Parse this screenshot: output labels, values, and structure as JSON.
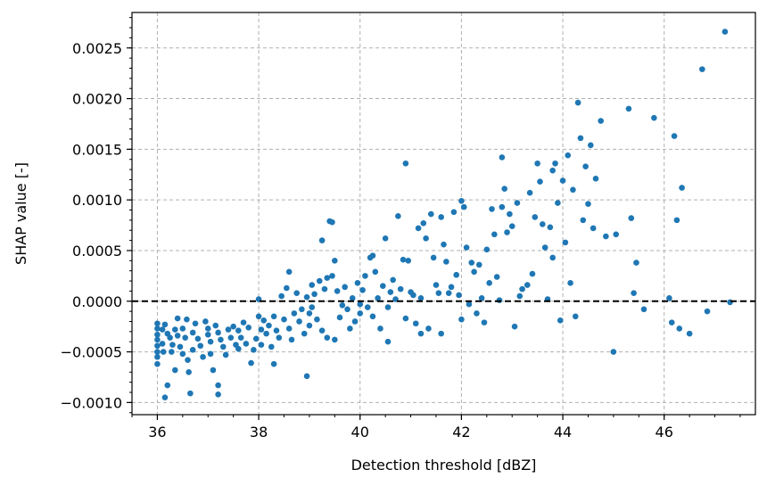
{
  "chart_data": {
    "type": "scatter",
    "title": "",
    "xlabel": "Detection threshold [dBZ]",
    "ylabel": "SHAP value [-]",
    "xlim": [
      35.5,
      47.8
    ],
    "ylim": [
      -0.00112,
      0.00285
    ],
    "xticks": [
      36,
      38,
      40,
      42,
      44,
      46
    ],
    "xtick_labels": [
      "36",
      "38",
      "40",
      "42",
      "44",
      "46"
    ],
    "yticks": [
      -0.001,
      -0.0005,
      0.0,
      0.0005,
      0.001,
      0.0015,
      0.002,
      0.0025
    ],
    "ytick_labels": [
      "−0.0010",
      "−0.0005",
      "0.0000",
      "0.0005",
      "0.0010",
      "0.0015",
      "0.0020",
      "0.0025"
    ],
    "grid": true,
    "reference_line": {
      "y": 0.0,
      "style": "dashed",
      "color": "#000000"
    },
    "colors": {
      "point": "#1f77b4",
      "grid": "#b0b0b0"
    },
    "series": [
      {
        "points": [
          [
            36.0,
            -0.00022
          ],
          [
            36.0,
            -0.00027
          ],
          [
            36.0,
            -0.00033
          ],
          [
            36.0,
            -0.00038
          ],
          [
            36.0,
            -0.00044
          ],
          [
            36.0,
            -0.0005
          ],
          [
            36.0,
            -0.00055
          ],
          [
            36.0,
            -0.00062
          ],
          [
            36.1,
            -0.00028
          ],
          [
            36.1,
            -0.00042
          ],
          [
            36.12,
            -0.0005
          ],
          [
            36.15,
            -0.00095
          ],
          [
            36.2,
            -0.00083
          ],
          [
            36.15,
            -0.00023
          ],
          [
            36.2,
            -0.00032
          ],
          [
            36.25,
            -0.00036
          ],
          [
            36.28,
            -0.0005
          ],
          [
            36.3,
            -0.00043
          ],
          [
            36.35,
            -0.00028
          ],
          [
            36.35,
            -0.00068
          ],
          [
            36.4,
            -0.00017
          ],
          [
            36.4,
            -0.00034
          ],
          [
            36.45,
            -0.00045
          ],
          [
            36.5,
            -0.00052
          ],
          [
            36.5,
            -0.00027
          ],
          [
            36.55,
            -0.00036
          ],
          [
            36.58,
            -0.00018
          ],
          [
            36.6,
            -0.00058
          ],
          [
            36.62,
            -0.0007
          ],
          [
            36.65,
            -0.00091
          ],
          [
            36.7,
            -0.00031
          ],
          [
            36.7,
            -0.00048
          ],
          [
            36.75,
            -0.00022
          ],
          [
            36.8,
            -0.00037
          ],
          [
            36.85,
            -0.00044
          ],
          [
            36.9,
            -0.00055
          ],
          [
            36.95,
            -0.0002
          ],
          [
            37.0,
            -0.00027
          ],
          [
            37.0,
            -0.00033
          ],
          [
            37.05,
            -0.0004
          ],
          [
            37.05,
            -0.00052
          ],
          [
            37.1,
            -0.00068
          ],
          [
            37.15,
            -0.00024
          ],
          [
            37.2,
            -0.00083
          ],
          [
            37.2,
            -0.00092
          ],
          [
            37.2,
            -0.00031
          ],
          [
            37.25,
            -0.00038
          ],
          [
            37.3,
            -0.00045
          ],
          [
            37.35,
            -0.00053
          ],
          [
            37.4,
            -0.00028
          ],
          [
            37.45,
            -0.00036
          ],
          [
            37.5,
            -0.00025
          ],
          [
            37.55,
            -0.00043
          ],
          [
            37.6,
            -0.00029
          ],
          [
            37.6,
            -0.00047
          ],
          [
            37.65,
            -0.00036
          ],
          [
            37.7,
            -0.00021
          ],
          [
            37.75,
            -0.00042
          ],
          [
            37.8,
            -0.00026
          ],
          [
            37.85,
            -0.00061
          ],
          [
            37.9,
            -0.00048
          ],
          [
            37.95,
            -0.00037
          ],
          [
            38.0,
            2e-05
          ],
          [
            38.0,
            -0.00015
          ],
          [
            38.05,
            -0.00028
          ],
          [
            38.05,
            -0.00043
          ],
          [
            38.1,
            -0.00019
          ],
          [
            38.15,
            -0.00032
          ],
          [
            38.2,
            -0.00024
          ],
          [
            38.25,
            -0.00045
          ],
          [
            38.3,
            -0.00062
          ],
          [
            38.3,
            -0.00015
          ],
          [
            38.35,
            -0.00029
          ],
          [
            38.4,
            -0.00036
          ],
          [
            38.45,
            5e-05
          ],
          [
            38.5,
            -0.00018
          ],
          [
            38.55,
            0.00013
          ],
          [
            38.6,
            0.00029
          ],
          [
            38.6,
            -0.00027
          ],
          [
            38.65,
            -0.00038
          ],
          [
            38.7,
            -0.00012
          ],
          [
            38.75,
            8e-05
          ],
          [
            38.8,
            -0.0002
          ],
          [
            38.85,
            -8e-05
          ],
          [
            38.9,
            -0.00032
          ],
          [
            38.95,
            -0.00074
          ],
          [
            38.95,
            4e-05
          ],
          [
            39.0,
            -0.00012
          ],
          [
            39.0,
            -0.00024
          ],
          [
            39.05,
            -6e-05
          ],
          [
            39.05,
            0.00016
          ],
          [
            39.1,
            7e-05
          ],
          [
            39.15,
            -0.00018
          ],
          [
            39.2,
            0.0002
          ],
          [
            39.25,
            0.0006
          ],
          [
            39.25,
            -0.00029
          ],
          [
            39.3,
            0.00012
          ],
          [
            39.35,
            0.00023
          ],
          [
            39.35,
            -0.00036
          ],
          [
            39.4,
            0.00079
          ],
          [
            39.45,
            0.00078
          ],
          [
            39.45,
            0.00025
          ],
          [
            39.5,
            0.0004
          ],
          [
            39.5,
            -0.00038
          ],
          [
            39.55,
            0.0001
          ],
          [
            39.6,
            -0.00016
          ],
          [
            39.65,
            -4e-05
          ],
          [
            39.7,
            0.00014
          ],
          [
            39.75,
            -8e-05
          ],
          [
            39.8,
            -0.00027
          ],
          [
            39.85,
            3e-05
          ],
          [
            39.9,
            -0.0002
          ],
          [
            39.95,
            0.00018
          ],
          [
            40.0,
            -3e-05
          ],
          [
            40.0,
            -0.00012
          ],
          [
            40.05,
            0.00011
          ],
          [
            40.1,
            0.00025
          ],
          [
            40.15,
            -6e-05
          ],
          [
            40.2,
            0.00043
          ],
          [
            40.25,
            0.00045
          ],
          [
            40.25,
            -0.00015
          ],
          [
            40.3,
            0.00029
          ],
          [
            40.35,
            3e-05
          ],
          [
            40.4,
            -0.00027
          ],
          [
            40.45,
            0.00015
          ],
          [
            40.5,
            0.00062
          ],
          [
            40.55,
            -0.0004
          ],
          [
            40.55,
            -6e-05
          ],
          [
            40.6,
            9e-05
          ],
          [
            40.65,
            0.00021
          ],
          [
            40.7,
            2e-05
          ],
          [
            40.75,
            0.00084
          ],
          [
            40.8,
            0.00012
          ],
          [
            40.85,
            0.00041
          ],
          [
            40.9,
            0.00136
          ],
          [
            40.9,
            -0.00017
          ],
          [
            40.95,
            0.0004
          ],
          [
            41.0,
            9e-05
          ],
          [
            41.05,
            6e-05
          ],
          [
            41.1,
            -0.00022
          ],
          [
            41.15,
            0.00072
          ],
          [
            41.2,
            -0.00032
          ],
          [
            41.2,
            3e-05
          ],
          [
            41.25,
            0.00077
          ],
          [
            41.3,
            0.00062
          ],
          [
            41.35,
            -0.00027
          ],
          [
            41.4,
            0.00086
          ],
          [
            41.45,
            0.00043
          ],
          [
            41.5,
            0.00016
          ],
          [
            41.55,
            8e-05
          ],
          [
            41.6,
            0.00083
          ],
          [
            41.6,
            -0.00032
          ],
          [
            41.65,
            0.00056
          ],
          [
            41.7,
            0.00039
          ],
          [
            41.75,
            8e-05
          ],
          [
            41.8,
            0.00014
          ],
          [
            41.85,
            0.00088
          ],
          [
            41.9,
            0.00026
          ],
          [
            41.95,
            6e-05
          ],
          [
            42.0,
            0.00099
          ],
          [
            42.0,
            -0.00018
          ],
          [
            42.05,
            0.00093
          ],
          [
            42.1,
            0.00053
          ],
          [
            42.15,
            -3e-05
          ],
          [
            42.2,
            0.00038
          ],
          [
            42.25,
            0.00029
          ],
          [
            42.3,
            -0.00012
          ],
          [
            42.35,
            0.00036
          ],
          [
            42.4,
            3e-05
          ],
          [
            42.45,
            -0.00021
          ],
          [
            42.5,
            0.00051
          ],
          [
            42.55,
            0.00018
          ],
          [
            42.6,
            0.00091
          ],
          [
            42.65,
            0.00066
          ],
          [
            42.7,
            0.00024
          ],
          [
            42.75,
            1e-05
          ],
          [
            42.8,
            0.00142
          ],
          [
            42.8,
            0.00093
          ],
          [
            42.85,
            0.00111
          ],
          [
            42.9,
            0.00068
          ],
          [
            42.95,
            0.00086
          ],
          [
            43.0,
            0.00074
          ],
          [
            43.05,
            -0.00025
          ],
          [
            43.1,
            0.00097
          ],
          [
            43.15,
            5e-05
          ],
          [
            43.2,
            0.00012
          ],
          [
            43.3,
            0.00016
          ],
          [
            43.35,
            0.00107
          ],
          [
            43.4,
            0.00027
          ],
          [
            43.45,
            0.00083
          ],
          [
            43.5,
            0.00136
          ],
          [
            43.55,
            0.00118
          ],
          [
            43.6,
            0.00076
          ],
          [
            43.65,
            0.00053
          ],
          [
            43.7,
            2e-05
          ],
          [
            43.75,
            0.00073
          ],
          [
            43.8,
            0.00129
          ],
          [
            43.8,
            0.00043
          ],
          [
            43.85,
            0.00136
          ],
          [
            43.9,
            0.00097
          ],
          [
            43.95,
            -0.00019
          ],
          [
            44.0,
            0.00119
          ],
          [
            44.05,
            0.00058
          ],
          [
            44.1,
            0.00144
          ],
          [
            44.15,
            0.00018
          ],
          [
            44.2,
            0.0011
          ],
          [
            44.25,
            -0.00015
          ],
          [
            44.3,
            0.00196
          ],
          [
            44.35,
            0.00161
          ],
          [
            44.4,
            0.0008
          ],
          [
            44.45,
            0.00133
          ],
          [
            44.5,
            0.00096
          ],
          [
            44.55,
            0.00154
          ],
          [
            44.6,
            0.00072
          ],
          [
            44.65,
            0.00121
          ],
          [
            44.75,
            0.00178
          ],
          [
            44.85,
            0.00064
          ],
          [
            45.0,
            -0.0005
          ],
          [
            45.05,
            0.00066
          ],
          [
            45.3,
            0.0019
          ],
          [
            45.35,
            0.00082
          ],
          [
            45.4,
            8e-05
          ],
          [
            45.45,
            0.00038
          ],
          [
            45.6,
            -8e-05
          ],
          [
            45.8,
            0.00181
          ],
          [
            46.1,
            3e-05
          ],
          [
            46.15,
            -0.00021
          ],
          [
            46.2,
            0.00163
          ],
          [
            46.25,
            0.0008
          ],
          [
            46.3,
            -0.00027
          ],
          [
            46.35,
            0.00112
          ],
          [
            46.5,
            -0.00032
          ],
          [
            46.75,
            0.00229
          ],
          [
            46.85,
            -0.0001
          ],
          [
            47.2,
            0.00266
          ],
          [
            47.3,
            -1e-05
          ]
        ]
      }
    ]
  }
}
